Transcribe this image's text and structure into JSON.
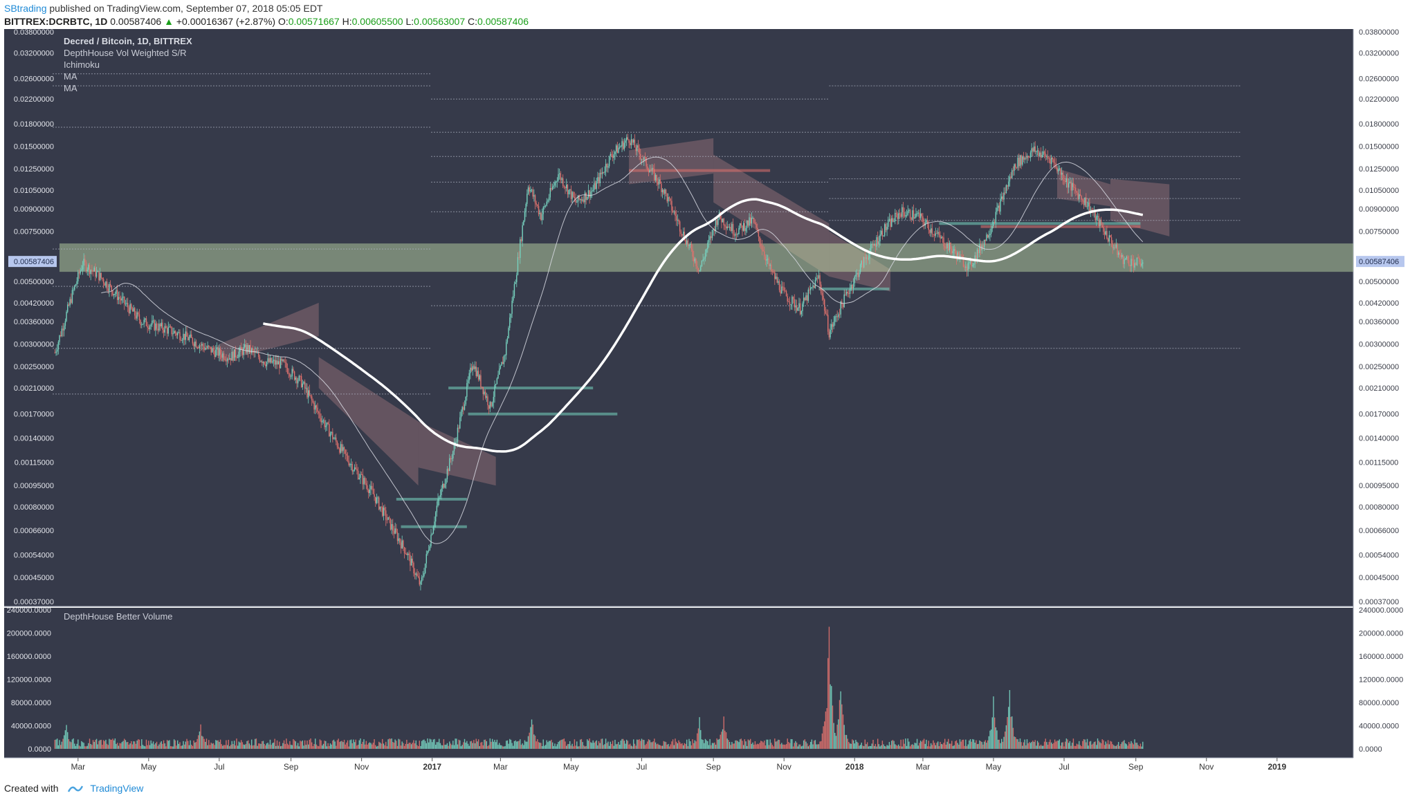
{
  "header": {
    "author": "SBtrading",
    "published": "published on TradingView.com, September 07, 2018 05:05 EDT",
    "symbol": "BITTREX:DCRBTC, 1D",
    "last": "0.00587406",
    "change": "+0.00016367 (+2.87%)",
    "open_label": "O:",
    "open": "0.00571667",
    "high_label": "H:",
    "high": "0.00605500",
    "low_label": "L:",
    "low": "0.00563007",
    "close_label": "C:",
    "close": "0.00587406"
  },
  "legend": {
    "title": "Decred / Bitcoin, 1D, BITTREX",
    "items": [
      "DepthHouse Vol Weighted S/R",
      "Ichimoku",
      "MA",
      "MA"
    ]
  },
  "volume_legend": "DepthHouse Better Volume",
  "footer": {
    "created_with": "Created with",
    "brand": "TradingView"
  },
  "colors": {
    "background": "#363a4a",
    "up": "#77d3c0",
    "down": "#e0726e",
    "ma_slow": "#ffffff",
    "ma_fast": "#d9dce4",
    "cloud": "#8b6a72",
    "sr_zone": "#c9e6b0",
    "price_tag": "#b7c7ee"
  },
  "chart_data": {
    "type": "candlestick",
    "scale": "log",
    "price_axis_labels": [
      "0.03800000",
      "0.03200000",
      "0.02600000",
      "0.02200000",
      "0.01800000",
      "0.01500000",
      "0.01250000",
      "0.01050000",
      "0.00900000",
      "0.00750000",
      "0.00587406",
      "0.00500000",
      "0.00420000",
      "0.00360000",
      "0.00300000",
      "0.00250000",
      "0.00210000",
      "0.00170000",
      "0.00140000",
      "0.00115000",
      "0.00095000",
      "0.00080000",
      "0.00066000",
      "0.00054000",
      "0.00045000",
      "0.00037000"
    ],
    "price_ticks": [
      0.038,
      0.032,
      0.026,
      0.022,
      0.018,
      0.015,
      0.0125,
      0.0105,
      0.009,
      0.0075,
      0.00587406,
      0.005,
      0.0042,
      0.0036,
      0.003,
      0.0025,
      0.0021,
      0.0017,
      0.0014,
      0.00115,
      0.00095,
      0.0008,
      0.00066,
      0.00054,
      0.00045,
      0.00037
    ],
    "ylim": [
      0.00037,
      0.038
    ],
    "volume_axis_labels": [
      "240000.0000",
      "200000.0000",
      "160000.0000",
      "120000.0000",
      "80000.0000",
      "40000.0000",
      "0.0000"
    ],
    "volume_ticks": [
      240000,
      200000,
      160000,
      120000,
      80000,
      40000,
      0
    ],
    "time_labels": [
      "Mar",
      "May",
      "Jul",
      "Sep",
      "Nov",
      "2017",
      "Mar",
      "May",
      "Jul",
      "Sep",
      "Nov",
      "2018",
      "Mar",
      "May",
      "Jul",
      "Sep",
      "Nov",
      "2019"
    ],
    "price_series": [
      [
        "2016-02-10",
        0.0028
      ],
      [
        "2016-02-25",
        0.0045
      ],
      [
        "2016-03-05",
        0.0058
      ],
      [
        "2016-03-20",
        0.0052
      ],
      [
        "2016-04-05",
        0.0044
      ],
      [
        "2016-04-25",
        0.0036
      ],
      [
        "2016-05-15",
        0.0034
      ],
      [
        "2016-06-01",
        0.0032
      ],
      [
        "2016-06-20",
        0.0029
      ],
      [
        "2016-07-10",
        0.0027
      ],
      [
        "2016-07-25",
        0.0029
      ],
      [
        "2016-08-10",
        0.0026
      ],
      [
        "2016-08-25",
        0.00255
      ],
      [
        "2016-09-10",
        0.0022
      ],
      [
        "2016-09-25",
        0.0017
      ],
      [
        "2016-10-10",
        0.00135
      ],
      [
        "2016-10-25",
        0.0011
      ],
      [
        "2016-11-10",
        0.0009
      ],
      [
        "2016-11-25",
        0.0007
      ],
      [
        "2016-12-10",
        0.00055
      ],
      [
        "2016-12-22",
        0.00042
      ],
      [
        "2017-01-05",
        0.0008
      ],
      [
        "2017-01-20",
        0.0013
      ],
      [
        "2017-02-05",
        0.0026
      ],
      [
        "2017-02-20",
        0.0018
      ],
      [
        "2017-03-05",
        0.0028
      ],
      [
        "2017-03-15",
        0.0055
      ],
      [
        "2017-03-25",
        0.011
      ],
      [
        "2017-04-05",
        0.0085
      ],
      [
        "2017-04-20",
        0.012
      ],
      [
        "2017-05-05",
        0.0095
      ],
      [
        "2017-05-20",
        0.0105
      ],
      [
        "2017-06-05",
        0.014
      ],
      [
        "2017-06-20",
        0.016
      ],
      [
        "2017-07-05",
        0.013
      ],
      [
        "2017-07-20",
        0.0105
      ],
      [
        "2017-08-05",
        0.0075
      ],
      [
        "2017-08-20",
        0.0055
      ],
      [
        "2017-09-05",
        0.0085
      ],
      [
        "2017-09-20",
        0.0075
      ],
      [
        "2017-10-05",
        0.0082
      ],
      [
        "2017-10-20",
        0.0055
      ],
      [
        "2017-11-01",
        0.0045
      ],
      [
        "2017-11-15",
        0.004
      ],
      [
        "2017-12-01",
        0.0052
      ],
      [
        "2017-12-10",
        0.0033
      ],
      [
        "2017-12-25",
        0.0045
      ],
      [
        "2018-01-10",
        0.006
      ],
      [
        "2018-01-25",
        0.0075
      ],
      [
        "2018-02-10",
        0.0088
      ],
      [
        "2018-02-25",
        0.0085
      ],
      [
        "2018-03-10",
        0.0075
      ],
      [
        "2018-03-25",
        0.0065
      ],
      [
        "2018-04-10",
        0.0056
      ],
      [
        "2018-04-25",
        0.0072
      ],
      [
        "2018-05-05",
        0.009
      ],
      [
        "2018-05-20",
        0.013
      ],
      [
        "2018-06-05",
        0.0145
      ],
      [
        "2018-06-20",
        0.0135
      ],
      [
        "2018-07-05",
        0.011
      ],
      [
        "2018-07-20",
        0.0095
      ],
      [
        "2018-08-05",
        0.0075
      ],
      [
        "2018-08-20",
        0.006
      ],
      [
        "2018-09-01",
        0.0058
      ],
      [
        "2018-09-07",
        0.00587406
      ]
    ],
    "volume_spikes": [
      [
        "2016-02-20",
        55000
      ],
      [
        "2016-06-15",
        52000
      ],
      [
        "2017-03-28",
        75000
      ],
      [
        "2017-08-20",
        55000
      ],
      [
        "2017-09-10",
        70000
      ],
      [
        "2017-12-10",
        225000
      ],
      [
        "2017-12-20",
        145000
      ],
      [
        "2018-05-15",
        130000
      ],
      [
        "2018-05-01",
        100000
      ]
    ],
    "sr_zone": [
      0.0054,
      0.0068
    ],
    "current_price": 0.00587406
  }
}
